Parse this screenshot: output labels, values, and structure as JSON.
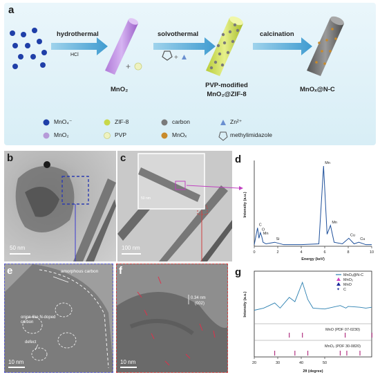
{
  "panels": {
    "a": "a",
    "b": "b",
    "c": "c",
    "d": "d",
    "e": "e",
    "f": "f",
    "g": "g"
  },
  "scheme": {
    "step1": "hydrothermal",
    "step1_sub": "HCl",
    "step2": "solvothermal",
    "step3": "calcination",
    "product1": "MnO₂",
    "product2_line1": "PVP-modified",
    "product2_line2": "MnO₂@ZIF-8",
    "product3": "MnOₓ@N-C"
  },
  "legend": [
    {
      "label": "MnO₄⁻",
      "color": "#1f3fa8",
      "shape": "dot"
    },
    {
      "label": "ZIF-8",
      "color": "#c8d84a",
      "shape": "dot"
    },
    {
      "label": "carbon",
      "color": "#7a7a7a",
      "shape": "dot"
    },
    {
      "label": "Zn²⁺",
      "color": "#6a8fd0",
      "shape": "triangle"
    },
    {
      "label": "MnO₂",
      "color": "#b69ad8",
      "shape": "dot"
    },
    {
      "label": "PVP",
      "color": "#eef2c0",
      "shape": "dot"
    },
    {
      "label": "MnOₓ",
      "color": "#c88a2a",
      "shape": "dot"
    },
    {
      "label": "methylimidazole",
      "color": "#555555",
      "shape": "ring"
    }
  ],
  "micrographs": {
    "b_scale": "50 nm",
    "c_scale": "100 nm",
    "c_inset_scale": "50 nm",
    "e_scale": "10 nm",
    "f_scale": "10 nm",
    "e_annot_amorphous": "amorphous carbon",
    "e_annot_onion": "onion-like N-doped carbon",
    "e_annot_defect": "defect",
    "f_annot_spacing": "0.34 nm",
    "f_annot_plane": "(002)"
  },
  "chart_data": [
    {
      "type": "line",
      "panel": "d",
      "xlabel": "Energy (keV)",
      "ylabel": "Intensity (a.u.)",
      "xlim": [
        0,
        10
      ],
      "xticks": [
        "0",
        "2",
        "4",
        "6",
        "8",
        "10"
      ],
      "x": [
        0,
        0.28,
        0.4,
        0.52,
        0.64,
        0.75,
        1.0,
        1.74,
        2.5,
        4.0,
        5.5,
        5.9,
        6.2,
        6.49,
        6.8,
        7.5,
        8.05,
        8.5,
        8.9,
        9.5,
        10
      ],
      "y": [
        0.02,
        0.23,
        0.1,
        0.17,
        0.12,
        0.05,
        0.03,
        0.05,
        0.02,
        0.02,
        0.03,
        1.0,
        0.15,
        0.26,
        0.05,
        0.03,
        0.1,
        0.03,
        0.05,
        0.02,
        0.02
      ],
      "peak_labels": [
        {
          "x": 0.28,
          "label": "C"
        },
        {
          "x": 0.52,
          "label": "O"
        },
        {
          "x": 0.64,
          "label": "Mn"
        },
        {
          "x": 1.74,
          "label": "Si"
        },
        {
          "x": 5.9,
          "label": "Mn"
        },
        {
          "x": 6.49,
          "label": "Mn"
        },
        {
          "x": 8.05,
          "label": "Cu"
        },
        {
          "x": 8.9,
          "label": "Cu"
        }
      ]
    },
    {
      "type": "line",
      "panel": "g",
      "xlabel": "2θ (degree)",
      "ylabel": "Intensity (a.u.)",
      "xlim": [
        20,
        70
      ],
      "xticks": [
        "20",
        "30",
        "40",
        "50"
      ],
      "series": [
        {
          "name": "MnOₓ@N-C"
        }
      ],
      "legend": [
        {
          "label": "MnOₓ@N-C",
          "marker": "line",
          "color": "#2a7fb0"
        },
        {
          "label": "MnO₂",
          "marker": "triangle",
          "color": "#d040c0"
        },
        {
          "label": "MnO",
          "marker": "triangle",
          "color": "#1a2a9a"
        },
        {
          "label": "C",
          "marker": "star",
          "color": "#1a2a9a"
        }
      ],
      "x": [
        20,
        24,
        26,
        28.7,
        31,
        34.9,
        37.3,
        40.5,
        42.8,
        45,
        50,
        56.6,
        59,
        60,
        65,
        67.5,
        70
      ],
      "y": [
        0.25,
        0.3,
        0.35,
        0.42,
        0.3,
        0.55,
        0.45,
        0.9,
        0.5,
        0.3,
        0.28,
        0.36,
        0.3,
        0.34,
        0.32,
        0.3,
        0.32
      ],
      "reference_1": {
        "label": "MnO (PDF 07-0230)",
        "peaks": [
          34.9,
          40.5,
          58.7,
          70.1
        ],
        "color": "#b03080"
      },
      "reference_2": {
        "label": "MnO₂ (PDF 30-0820)",
        "peaks": [
          28.7,
          37.3,
          42.8,
          56.6,
          59.4,
          65.0
        ],
        "color": "#b03080"
      }
    }
  ]
}
